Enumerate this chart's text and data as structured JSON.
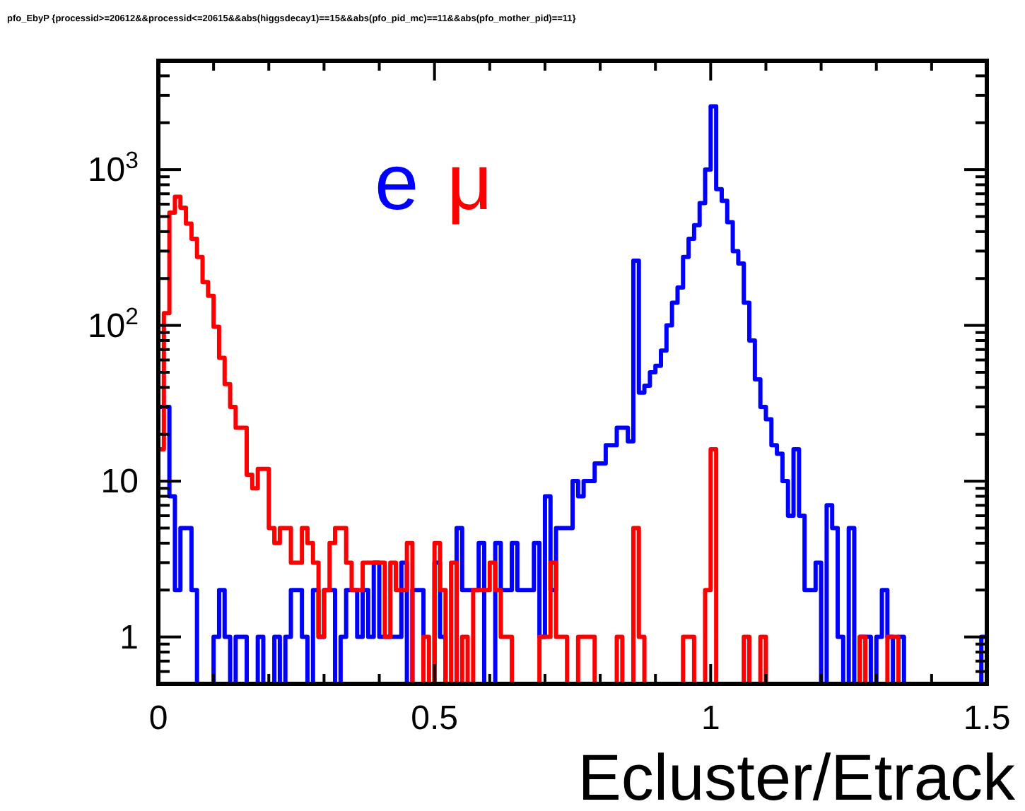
{
  "chart_data": {
    "type": "histogram",
    "title": "pfo_EbyP {processid>=20612&&processid<=20615&&abs(higgsdecay1)==15&&abs(pfo_pid_mc)==11&&abs(pfo_mother_pid)==11}",
    "xlabel": "Ecluster/Etrack",
    "log": "y",
    "legend": "top",
    "grid": false,
    "xlim": [
      0,
      1.5
    ],
    "ylim": [
      0.5,
      5000
    ],
    "xticks": [
      0,
      {
        "value": 0.1,
        "label": null
      },
      {
        "value": 0.2,
        "label": null
      },
      {
        "value": 0.3,
        "label": null
      },
      {
        "value": 0.4,
        "label": null
      },
      0.5,
      {
        "value": 0.6,
        "label": null
      },
      {
        "value": 0.7,
        "label": null
      },
      {
        "value": 0.8,
        "label": null
      },
      {
        "value": 0.9,
        "label": null
      },
      1,
      {
        "value": 1.1,
        "label": null
      },
      {
        "value": 1.2,
        "label": null
      },
      {
        "value": 1.3,
        "label": null
      },
      {
        "value": 1.4,
        "label": null
      },
      1.5
    ],
    "yticks": [
      {
        "value": 0.6,
        "label": null
      },
      {
        "value": 0.7,
        "label": null
      },
      {
        "value": 0.8,
        "label": null
      },
      {
        "value": 0.9,
        "label": null
      },
      1,
      {
        "value": 2,
        "label": null
      },
      {
        "value": 3,
        "label": null
      },
      {
        "value": 4,
        "label": null
      },
      {
        "value": 5,
        "label": null
      },
      {
        "value": 6,
        "label": null
      },
      {
        "value": 7,
        "label": null
      },
      {
        "value": 8,
        "label": null
      },
      {
        "value": 9,
        "label": null
      },
      10,
      {
        "value": 20,
        "label": null
      },
      {
        "value": 30,
        "label": null
      },
      {
        "value": 40,
        "label": null
      },
      {
        "value": 50,
        "label": null
      },
      {
        "value": 60,
        "label": null
      },
      {
        "value": 70,
        "label": null
      },
      {
        "value": 80,
        "label": null
      },
      {
        "value": 90,
        "label": null
      },
      {
        "value": 100,
        "label": "10$^{2}$"
      },
      {
        "value": 200,
        "label": null
      },
      {
        "value": 300,
        "label": null
      },
      {
        "value": 400,
        "label": null
      },
      {
        "value": 500,
        "label": null
      },
      {
        "value": 600,
        "label": null
      },
      {
        "value": 700,
        "label": null
      },
      {
        "value": 800,
        "label": null
      },
      {
        "value": 900,
        "label": null
      },
      {
        "value": 1000,
        "label": "10$^{3}$"
      },
      {
        "value": 2000,
        "label": null
      },
      {
        "value": 3000,
        "label": null
      },
      {
        "value": 4000,
        "label": null
      }
    ],
    "bins": [
      0,
      0.01,
      0.02,
      0.03,
      0.04,
      0.05,
      0.06,
      0.07,
      0.08,
      0.09,
      0.1,
      0.11,
      0.12,
      0.13,
      0.14,
      0.15,
      0.16,
      0.17,
      0.18,
      0.19,
      0.2,
      0.21,
      0.22,
      0.23,
      0.24,
      0.25,
      0.26,
      0.27,
      0.28,
      0.29,
      0.3,
      0.31,
      0.32,
      0.33,
      0.34,
      0.35,
      0.36,
      0.37,
      0.38,
      0.39,
      0.4,
      0.41,
      0.42,
      0.43,
      0.44,
      0.45,
      0.46,
      0.47,
      0.48,
      0.49,
      0.5,
      0.51,
      0.52,
      0.53,
      0.54,
      0.55,
      0.56,
      0.57,
      0.58,
      0.59,
      0.6,
      0.61,
      0.62,
      0.63,
      0.64,
      0.65,
      0.66,
      0.67,
      0.68,
      0.69,
      0.7,
      0.71,
      0.72,
      0.73,
      0.74,
      0.75,
      0.76,
      0.77,
      0.78,
      0.79,
      0.8,
      0.81,
      0.82,
      0.83,
      0.84,
      0.85,
      0.86,
      0.87,
      0.88,
      0.89,
      0.9,
      0.91,
      0.92,
      0.93,
      0.94,
      0.95,
      0.96,
      0.97,
      0.98,
      0.99,
      1,
      1.01,
      1.02,
      1.03,
      1.04,
      1.05,
      1.06,
      1.07,
      1.08,
      1.09,
      1.1,
      1.11,
      1.12,
      1.13,
      1.14,
      1.15,
      1.16,
      1.17,
      1.18,
      1.19,
      1.2,
      1.21,
      1.22,
      1.23,
      1.24,
      1.25,
      1.26,
      1.27,
      1.28,
      1.29,
      1.3,
      1.31,
      1.32,
      1.33,
      1.34,
      1.35,
      1.36,
      1.37,
      1.38,
      1.39,
      1.4,
      1.41,
      1.42,
      1.43,
      1.44,
      1.45,
      1.46,
      1.47,
      1.48,
      1.49,
      1.5
    ],
    "series": [
      {
        "name": "e",
        "color": "#0000ff",
        "values": [
          30,
          30,
          8,
          2,
          5,
          5,
          2,
          null,
          null,
          null,
          1,
          2,
          1,
          null,
          1,
          1,
          null,
          null,
          1,
          null,
          null,
          1,
          null,
          1,
          2,
          2,
          1,
          null,
          2,
          1,
          2,
          2,
          null,
          1,
          2,
          2,
          1,
          2,
          1,
          3,
          1,
          1,
          1,
          1,
          3,
          null,
          2,
          2,
          null,
          null,
          3,
          1,
          null,
          null,
          5,
          2,
          2,
          2,
          4,
          null,
          null,
          4,
          2,
          2,
          4,
          2,
          2,
          2,
          4,
          1,
          8,
          2,
          5,
          5,
          5,
          10,
          8,
          10,
          10,
          13,
          13,
          17,
          17,
          22,
          22,
          18,
          260,
          37,
          41,
          50,
          55,
          69,
          100,
          140,
          175,
          275,
          360,
          440,
          610,
          1000,
          2550,
          750,
          630,
          460,
          300,
          250,
          140,
          80,
          45,
          30,
          25,
          17,
          15,
          10,
          6,
          16,
          6,
          2,
          2,
          3,
          null,
          7,
          5,
          1,
          null,
          5,
          null,
          1,
          1,
          null,
          1,
          2,
          1,
          null,
          1,
          null,
          null,
          null,
          null,
          null,
          null,
          null,
          null,
          null,
          null,
          null,
          null,
          null,
          null,
          1
        ]
      },
      {
        "name": "μ",
        "color": "#ff0000",
        "values": [
          16,
          120,
          530,
          670,
          570,
          450,
          360,
          275,
          190,
          155,
          98,
          62,
          42,
          30,
          22,
          22,
          11,
          9,
          12,
          12,
          5,
          4,
          5,
          5,
          3,
          3,
          5,
          4,
          3,
          1,
          2,
          4,
          5,
          5,
          3,
          2,
          2,
          3,
          3,
          3,
          3,
          1,
          3,
          2,
          2,
          4,
          null,
          null,
          1,
          null,
          4,
          2,
          null,
          3,
          null,
          1,
          null,
          2,
          2,
          2,
          3,
          2,
          1,
          1,
          null,
          null,
          null,
          null,
          null,
          1,
          1,
          3,
          1,
          1,
          null,
          null,
          1,
          1,
          1,
          null,
          null,
          null,
          null,
          1,
          null,
          null,
          5,
          1,
          null,
          null,
          null,
          null,
          null,
          null,
          null,
          1,
          1,
          null,
          null,
          2,
          16,
          null,
          null,
          null,
          null,
          null,
          1,
          null,
          null,
          1,
          null,
          null,
          null,
          null,
          null,
          null,
          null,
          null,
          null,
          null,
          null,
          null,
          null,
          null,
          null,
          null,
          null,
          1,
          null,
          null,
          null,
          null,
          1,
          1,
          null,
          null,
          null,
          null,
          null,
          null,
          null,
          null,
          null,
          null,
          null,
          null,
          null,
          null,
          null,
          null
        ]
      }
    ]
  }
}
